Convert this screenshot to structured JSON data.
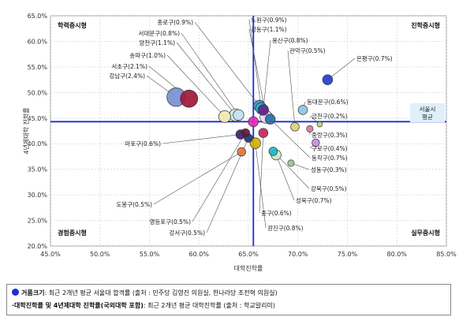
{
  "chart_data": {
    "type": "scatter",
    "xlabel": "대학진학률",
    "ylabel": "4년제대학 진학률",
    "xlim": [
      0.45,
      0.85
    ],
    "ylim": [
      0.2,
      0.65
    ],
    "x_ticks": [
      "45.0%",
      "50.0%",
      "55.0%",
      "60.0%",
      "65.0%",
      "70.0%",
      "75.0%",
      "80.0%",
      "85.0%"
    ],
    "y_ticks": [
      "20.0%",
      "25.0%",
      "30.0%",
      "35.0%",
      "40.0%",
      "45.0%",
      "50.0%",
      "55.0%",
      "60.0%",
      "65.0%"
    ],
    "reference_lines": {
      "x": 0.655,
      "y": 0.443
    },
    "reference_label": [
      "서울시",
      "평균"
    ],
    "quadrants": [
      "학력중시형",
      "진학중시형",
      "경험중시형",
      "실무중시형"
    ],
    "points": [
      {
        "label": "종로구(0.9%)",
        "x": 0.661,
        "y": 0.474,
        "size": 0.9,
        "color": "#3f8fc8"
      },
      {
        "label": "중구(0.6%)",
        "x": 0.665,
        "y": 0.421,
        "size": 0.6,
        "color": "#c0285c"
      },
      {
        "label": "용산구(0.8%)",
        "x": 0.665,
        "y": 0.466,
        "size": 0.8,
        "color": "#6a1f8a"
      },
      {
        "label": "성동구(0.3%)",
        "x": 0.693,
        "y": 0.362,
        "size": 0.3,
        "color": "#9ec38b"
      },
      {
        "label": "광진구(0.8%)",
        "x": 0.657,
        "y": 0.401,
        "size": 0.8,
        "color": "#d8b000"
      },
      {
        "label": "동대문구(0.6%)",
        "x": 0.705,
        "y": 0.466,
        "size": 0.6,
        "color": "#90c4e4"
      },
      {
        "label": "중랑구(0.3%)",
        "x": 0.712,
        "y": 0.429,
        "size": 0.3,
        "color": "#d87890"
      },
      {
        "label": "성북구(0.7%)",
        "x": 0.678,
        "y": 0.378,
        "size": 0.7,
        "color": "#d0e8c8"
      },
      {
        "label": "강북구(0.5%)",
        "x": 0.675,
        "y": 0.385,
        "size": 0.5,
        "color": "#20b8c8"
      },
      {
        "label": "도봉구(0.5%)",
        "x": 0.643,
        "y": 0.384,
        "size": 0.5,
        "color": "#e07838"
      },
      {
        "label": "노원구(0.9%)",
        "x": 0.663,
        "y": 0.469,
        "size": 0.9,
        "color": "#18c8d8"
      },
      {
        "label": "은평구(0.7%)",
        "x": 0.73,
        "y": 0.525,
        "size": 0.7,
        "color": "#2040d0"
      },
      {
        "label": "서대문구(0.8%)",
        "x": 0.64,
        "y": 0.456,
        "size": 0.8,
        "color": "#c8e0f4"
      },
      {
        "label": "마포구(0.6%)",
        "x": 0.642,
        "y": 0.418,
        "size": 0.6,
        "color": "#402070"
      },
      {
        "label": "양천구(1.1%)",
        "x": 0.637,
        "y": 0.456,
        "size": 1.1,
        "color": "#cce8e0"
      },
      {
        "label": "강서구(0.5%)",
        "x": 0.65,
        "y": 0.411,
        "size": 0.5,
        "color": "#1c3880"
      },
      {
        "label": "구로구(0.4%)",
        "x": 0.718,
        "y": 0.402,
        "size": 0.4,
        "color": "#c890e0"
      },
      {
        "label": "금천구(0.2%)",
        "x": 0.722,
        "y": 0.438,
        "size": 0.2,
        "color": "#c8d070"
      },
      {
        "label": "영등포구(0.5%)",
        "x": 0.647,
        "y": 0.421,
        "size": 0.5,
        "color": "#601838"
      },
      {
        "label": "동작구(0.7%)",
        "x": 0.672,
        "y": 0.448,
        "size": 0.7,
        "color": "#2870a8"
      },
      {
        "label": "관악구(0.5%)",
        "x": 0.697,
        "y": 0.433,
        "size": 0.5,
        "color": "#e0d078"
      },
      {
        "label": "서초구(2.1%)",
        "x": 0.59,
        "y": 0.488,
        "size": 2.1,
        "color": "#a01838"
      },
      {
        "label": "강남구(2.4%)",
        "x": 0.577,
        "y": 0.491,
        "size": 2.4,
        "color": "#7890d0"
      },
      {
        "label": "송파구(1.0%)",
        "x": 0.626,
        "y": 0.453,
        "size": 1.0,
        "color": "#f0e8b0"
      },
      {
        "label": "강동구(1.1%)",
        "x": 0.668,
        "y": 0.452,
        "size": 1.1,
        "color": "#e8d8f0"
      },
      {
        "label": "평균",
        "x": 0.655,
        "y": 0.443,
        "size": 0.7,
        "color": "#e828b8"
      }
    ]
  },
  "footer": {
    "line1_bold": "거품크기",
    "line1_rest": ": 최근 2개년 평균 서울대 합격률 (출처 : 민주당 김영진 의원실, 한나라당 조전혁 의원실)",
    "line2_bold": "·대학진학률 및 4년제대학 진학률(국외대학 포함)",
    "line2_rest": ": 최근 2개년 평균 대학진학률 (출처 : 학교알리미)"
  }
}
